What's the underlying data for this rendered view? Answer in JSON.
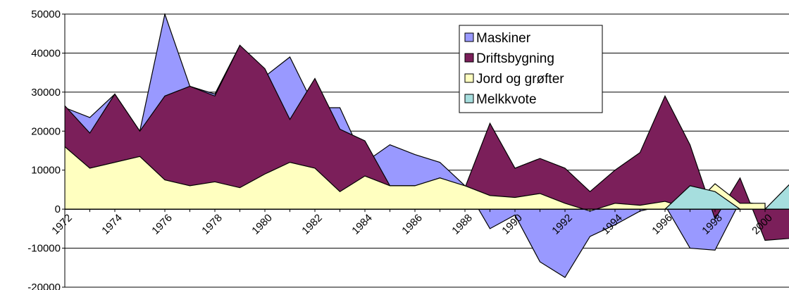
{
  "chart_data": {
    "type": "area",
    "categories": [
      "1972",
      null,
      "1974",
      null,
      "1976",
      null,
      "1978",
      null,
      "1980",
      null,
      "1982",
      null,
      "1984",
      null,
      "1986",
      null,
      "1988",
      null,
      "1990",
      null,
      "1992",
      null,
      "1994",
      null,
      "1996",
      null,
      "1998",
      null,
      "2000",
      null
    ],
    "series": [
      {
        "name": "Maskiner",
        "color": "#9999ff",
        "values": [
          26000,
          23500,
          29500,
          20000,
          50000,
          31500,
          29500,
          42000,
          34000,
          39000,
          26000,
          26000,
          12000,
          16500,
          14000,
          12000,
          6000,
          -5000,
          -1500,
          -13500,
          -17500,
          -7000,
          -4000,
          -500,
          1000,
          -10000,
          -10500,
          2000,
          1000,
          null
        ]
      },
      {
        "name": "Driftsbygning",
        "color": "#7b1f5a",
        "values": [
          26500,
          19500,
          29500,
          20000,
          29000,
          31500,
          29000,
          42000,
          36000,
          23000,
          33500,
          20500,
          17500,
          6000,
          6000,
          8000,
          5500,
          22000,
          10500,
          13000,
          10500,
          4500,
          10000,
          14500,
          29000,
          16500,
          -2500,
          8000,
          -8000,
          -7500
        ]
      },
      {
        "name": "Jord og grøfter",
        "color": "#ffffc0",
        "values": [
          16000,
          10500,
          12000,
          13500,
          7500,
          6000,
          7000,
          5500,
          9000,
          12000,
          10500,
          4500,
          8500,
          6000,
          6000,
          8000,
          6000,
          3500,
          3000,
          4000,
          1500,
          -500,
          1500,
          1000,
          2000,
          0,
          6500,
          1500,
          1500,
          null
        ]
      },
      {
        "name": "Melkkvote",
        "color": "#a6dede",
        "values": [
          0,
          0,
          0,
          0,
          0,
          0,
          0,
          0,
          0,
          0,
          0,
          0,
          0,
          0,
          0,
          0,
          0,
          0,
          0,
          0,
          0,
          0,
          0,
          0,
          0,
          6000,
          4500,
          0,
          0,
          6500
        ]
      }
    ],
    "ylim": [
      -20000,
      50000
    ],
    "yticks": [
      -20000,
      -10000,
      0,
      10000,
      20000,
      30000,
      40000,
      50000
    ],
    "grid": true
  }
}
